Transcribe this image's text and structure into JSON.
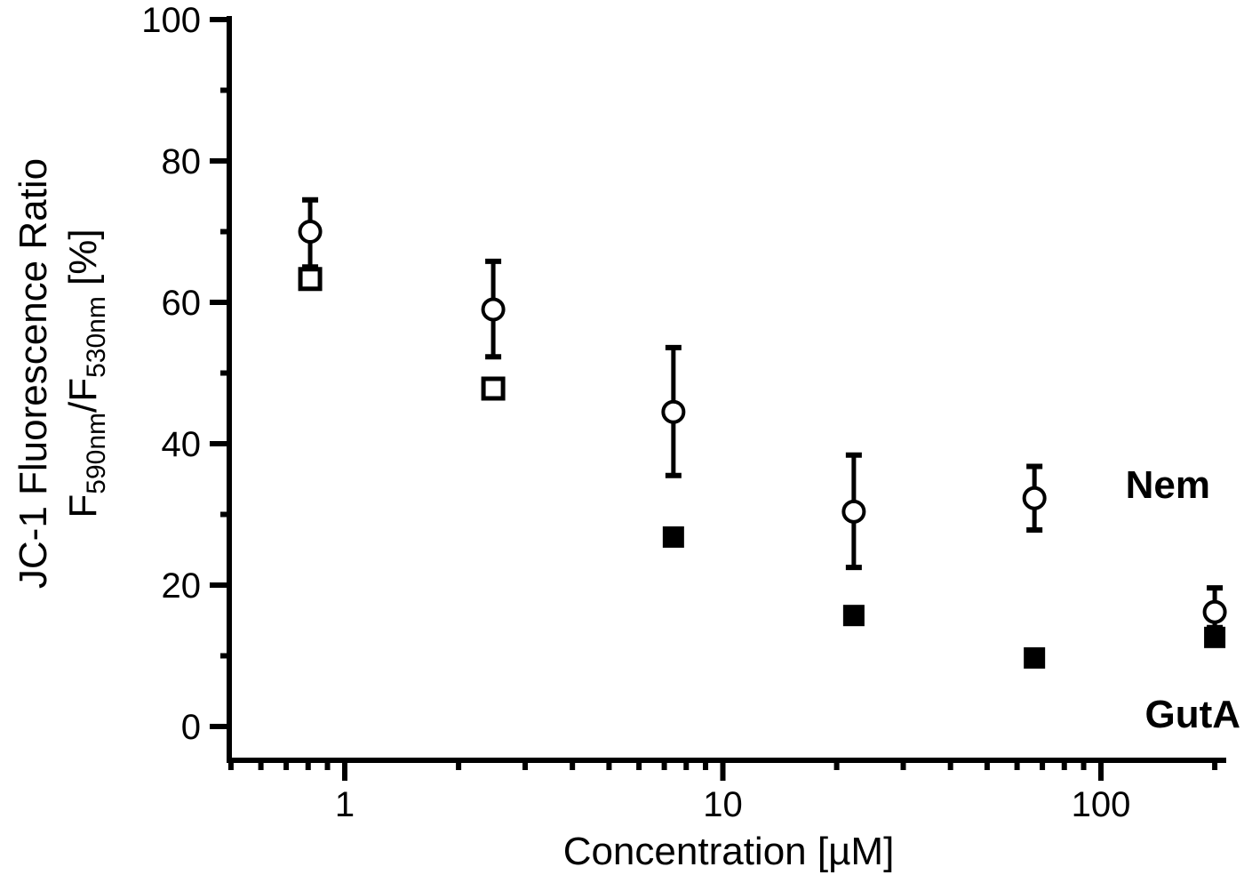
{
  "chart_data": {
    "type": "scatter",
    "title": "",
    "xlabel": "Concentration [µM]",
    "ylabel_line1": "JC-1 Fluorescence Ratio",
    "ylabel_line2": {
      "F1": "F",
      "sub1": "590nm",
      "slash": "/F",
      "sub2": "530nm",
      "unit": " [%]"
    },
    "xscale": "log",
    "xlim": [
      0.5,
      210
    ],
    "ylim": [
      0,
      100
    ],
    "x_ticks": [
      1,
      10,
      100
    ],
    "x_tick_labels": [
      "1",
      "10",
      "100"
    ],
    "y_ticks": [
      0,
      20,
      40,
      60,
      80,
      100
    ],
    "y_tick_labels": [
      "0",
      "20",
      "40",
      "60",
      "80",
      "100"
    ],
    "grid": false,
    "legend": "inline labels at right",
    "series": [
      {
        "name": "Nem",
        "marker": "open-circle",
        "x": [
          0.81,
          2.47,
          7.4,
          22.2,
          66.7,
          200
        ],
        "values": [
          70.0,
          59.0,
          44.5,
          30.4,
          32.3,
          16.2
        ],
        "error_upper": [
          74.5,
          65.8,
          53.6,
          38.4,
          36.8,
          19.6
        ],
        "error_lower": [
          65.0,
          52.3,
          35.5,
          22.5,
          27.8,
          14.0
        ]
      },
      {
        "name": "GutA",
        "marker": "square",
        "x": [
          0.81,
          2.47,
          7.4,
          22.2,
          66.7,
          200
        ],
        "values": [
          63.3,
          47.8,
          26.8,
          15.7,
          9.7,
          12.6
        ],
        "fill": [
          "open",
          "open",
          "filled",
          "filled",
          "filled",
          "filled"
        ]
      }
    ],
    "annotations": [
      {
        "text": "Nem",
        "position": "right, y≈34"
      },
      {
        "text": "GutA",
        "position": "right, y≈2"
      }
    ]
  }
}
